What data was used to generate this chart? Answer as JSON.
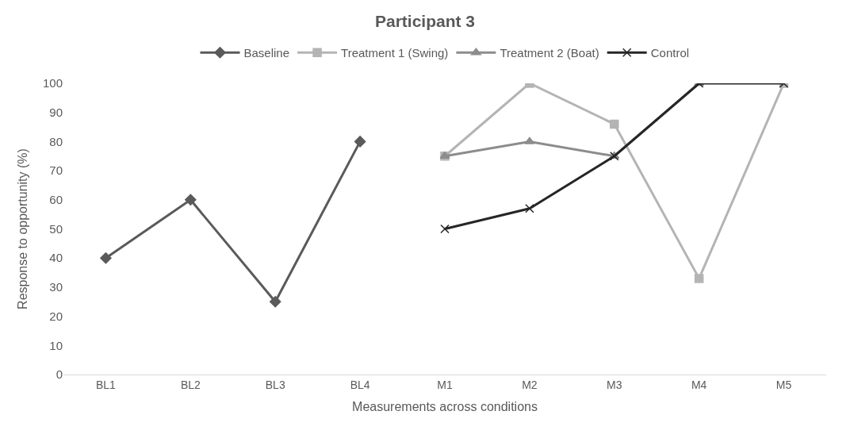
{
  "chart_data": {
    "type": "line",
    "title": "Participant 3",
    "xlabel": "Measurements across conditions",
    "ylabel": "Response to opportunity (%)",
    "categories": [
      "BL1",
      "BL2",
      "BL3",
      "BL4",
      "M1",
      "M2",
      "M3",
      "M4",
      "M5"
    ],
    "series": [
      {
        "name": "Baseline",
        "color": "#5a5a5a",
        "marker": "diamond",
        "values": [
          40,
          60,
          25,
          80,
          null,
          null,
          null,
          null,
          null
        ]
      },
      {
        "name": "Treatment 1 (Swing)",
        "color": "#b4b4b4",
        "marker": "square",
        "values": [
          null,
          null,
          null,
          null,
          75,
          100,
          86,
          33,
          100
        ]
      },
      {
        "name": "Treatment 2 (Boat)",
        "color": "#8c8c8c",
        "marker": "triangle",
        "values": [
          null,
          null,
          null,
          null,
          75,
          80,
          75,
          100,
          null
        ]
      },
      {
        "name": "Control",
        "color": "#262626",
        "marker": "cross",
        "values": [
          null,
          null,
          null,
          null,
          50,
          57,
          75,
          100,
          100
        ]
      }
    ],
    "ylim": [
      0,
      100
    ],
    "yticks": [
      0,
      10,
      20,
      30,
      40,
      50,
      60,
      70,
      80,
      90,
      100
    ],
    "grid": false,
    "legend": "top",
    "line_style": "solid"
  }
}
